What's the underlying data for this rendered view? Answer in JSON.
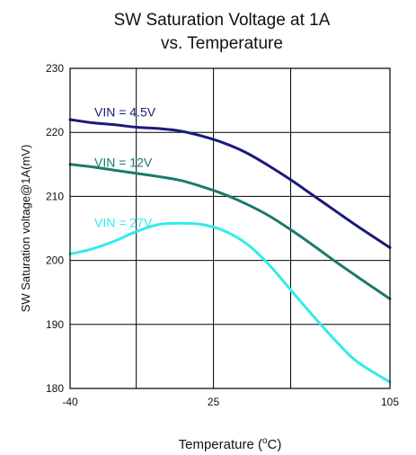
{
  "chart_data": {
    "type": "line",
    "title_line1": "SW Saturation Voltage at 1A",
    "title_line2": "vs. Temperature",
    "xlabel": "Temperature (",
    "xlabel_unit_sup": "o",
    "xlabel_unit": "C)",
    "ylabel": "SW Saturation voltage@1A(mV)",
    "xlim": [
      -40,
      105
    ],
    "ylim": [
      180,
      230
    ],
    "x_gridlines": [
      -40,
      -10,
      25,
      60,
      105
    ],
    "y_gridlines": [
      180,
      190,
      200,
      210,
      220,
      230
    ],
    "x_ticks": [
      {
        "value": -40,
        "label": "-40"
      },
      {
        "value": 25,
        "label": "25"
      },
      {
        "value": 105,
        "label": "105"
      }
    ],
    "y_ticks": [
      {
        "value": 180,
        "label": "180"
      },
      {
        "value": 190,
        "label": "190"
      },
      {
        "value": 200,
        "label": "200"
      },
      {
        "value": 210,
        "label": "210"
      },
      {
        "value": 220,
        "label": "220"
      },
      {
        "value": 230,
        "label": "230"
      }
    ],
    "grid": true,
    "series": [
      {
        "name": "VIN = 4.5V",
        "color": "#1a1a7a",
        "label_at": {
          "x": -29,
          "y": 222.5
        },
        "x": [
          -40,
          -30,
          -20,
          -10,
          0,
          10,
          20,
          30,
          40,
          50,
          60,
          70,
          80,
          90,
          105
        ],
        "y": [
          222.0,
          221.5,
          221.2,
          220.8,
          220.6,
          220.2,
          219.4,
          218.3,
          216.8,
          214.8,
          212.6,
          210.2,
          207.8,
          205.4,
          202.0
        ]
      },
      {
        "name": "VIN = 12V",
        "color": "#1a7a6e",
        "label_at": {
          "x": -29,
          "y": 214.6
        },
        "x": [
          -40,
          -30,
          -20,
          -10,
          0,
          10,
          20,
          30,
          40,
          50,
          60,
          70,
          80,
          90,
          105
        ],
        "y": [
          215.0,
          214.6,
          214.1,
          213.6,
          213.1,
          212.5,
          211.5,
          210.3,
          208.8,
          207.0,
          204.8,
          202.4,
          199.9,
          197.5,
          194.0
        ]
      },
      {
        "name": "VIN = 27V",
        "color": "#33eaea",
        "label_at": {
          "x": -29,
          "y": 205.2
        },
        "x": [
          -40,
          -30,
          -20,
          -10,
          0,
          10,
          20,
          30,
          40,
          50,
          60,
          70,
          80,
          90,
          105
        ],
        "y": [
          201.0,
          201.8,
          203.0,
          204.5,
          205.6,
          205.8,
          205.6,
          204.6,
          202.6,
          199.4,
          195.4,
          191.4,
          187.6,
          184.2,
          181.0
        ]
      }
    ]
  }
}
